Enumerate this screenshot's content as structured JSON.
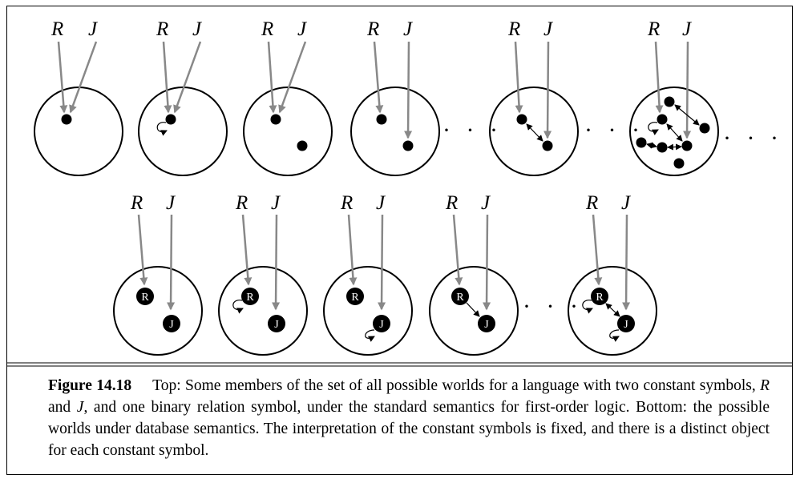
{
  "symbols": {
    "r": "R",
    "j": "J"
  },
  "objects": {
    "r": "R",
    "j": "J"
  },
  "ellipsis": "· · ·",
  "caption": {
    "label": "Figure 14.18",
    "text1": "Top: Some members of the set of all possible worlds for a language with two constant symbols, ",
    "sym_r": "R",
    "text2": " and ",
    "sym_j": "J",
    "text3": ", and one binary relation symbol, under the standard semantics for first-order logic. Bottom: the possible worlds under database semantics. The interpretation of the constant symbols is fixed, and there is a distinct object for each constant symbol."
  },
  "colors": {
    "pointer_arrow": "#888888",
    "relation_arrow": "#000000",
    "object": "#000000"
  },
  "icons": [
    "circle-world",
    "object-dot",
    "labeled-object",
    "self-loop",
    "double-arrow"
  ]
}
